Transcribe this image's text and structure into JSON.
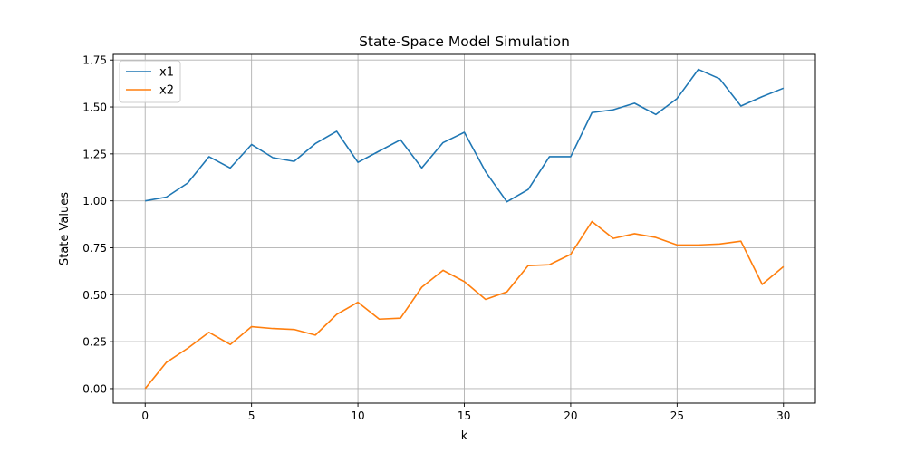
{
  "chart_data": {
    "type": "line",
    "title": "State-Space Model Simulation",
    "xlabel": "k",
    "ylabel": "State Values",
    "xlim": [
      -1.5,
      31.5
    ],
    "ylim": [
      -0.0775,
      1.78
    ],
    "xticks": [
      0,
      5,
      10,
      15,
      20,
      25,
      30
    ],
    "xtick_labels": [
      "0",
      "5",
      "10",
      "15",
      "20",
      "25",
      "30"
    ],
    "yticks": [
      0,
      0.25,
      0.5,
      0.75,
      1.0,
      1.25,
      1.5,
      1.75
    ],
    "ytick_labels": [
      "0.00",
      "0.25",
      "0.50",
      "0.75",
      "1.00",
      "1.25",
      "1.50",
      "1.75"
    ],
    "grid": true,
    "legend_position": "upper-left",
    "x": [
      0,
      1,
      2,
      3,
      4,
      5,
      6,
      7,
      8,
      9,
      10,
      11,
      12,
      13,
      14,
      15,
      16,
      17,
      18,
      19,
      20,
      21,
      22,
      23,
      24,
      25,
      26,
      27,
      28,
      29,
      30
    ],
    "series": [
      {
        "name": "x1",
        "color": "#1f77b4",
        "values": [
          1.0,
          1.02,
          1.095,
          1.235,
          1.175,
          1.3,
          1.23,
          1.21,
          1.305,
          1.37,
          1.205,
          1.265,
          1.325,
          1.175,
          1.31,
          1.365,
          1.155,
          0.995,
          1.06,
          1.235,
          1.235,
          1.47,
          1.485,
          1.52,
          1.46,
          1.545,
          1.7,
          1.65,
          1.505,
          1.555,
          1.6
        ]
      },
      {
        "name": "x2",
        "color": "#ff7f0e",
        "values": [
          0.0,
          0.14,
          0.215,
          0.3,
          0.235,
          0.33,
          0.32,
          0.315,
          0.285,
          0.395,
          0.46,
          0.37,
          0.375,
          0.54,
          0.63,
          0.57,
          0.475,
          0.515,
          0.655,
          0.66,
          0.715,
          0.89,
          0.8,
          0.825,
          0.805,
          0.765,
          0.765,
          0.77,
          0.785,
          0.555,
          0.65
        ]
      }
    ]
  }
}
